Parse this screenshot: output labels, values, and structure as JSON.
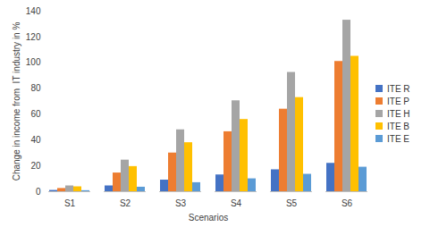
{
  "chart_data": {
    "type": "bar",
    "categories": [
      "S1",
      "S2",
      "S3",
      "S4",
      "S5",
      "S6"
    ],
    "series": [
      {
        "name": "ITE R",
        "color": "#4472c4",
        "values": [
          1,
          4.5,
          9,
          13,
          17,
          22
        ]
      },
      {
        "name": "ITE P",
        "color": "#ed7d31",
        "values": [
          2.5,
          14.5,
          30,
          46.5,
          64,
          101
        ]
      },
      {
        "name": "ITE H",
        "color": "#a5a5a5",
        "values": [
          4.5,
          24.5,
          48,
          70.5,
          92.5,
          133
        ]
      },
      {
        "name": "ITE B",
        "color": "#ffc000",
        "values": [
          3.8,
          19.5,
          38,
          56,
          73,
          105
        ]
      },
      {
        "name": "ITE E",
        "color": "#5b9bd5",
        "values": [
          0.8,
          3.5,
          7,
          10,
          13.5,
          19
        ]
      }
    ],
    "x_label": "Scenarios",
    "y_label": "Change in income from  IT industry in %",
    "ylim": [
      0,
      140
    ],
    "yticks": [
      0,
      20,
      40,
      60,
      80,
      100,
      120,
      140
    ],
    "grid": false,
    "legend": "right"
  }
}
